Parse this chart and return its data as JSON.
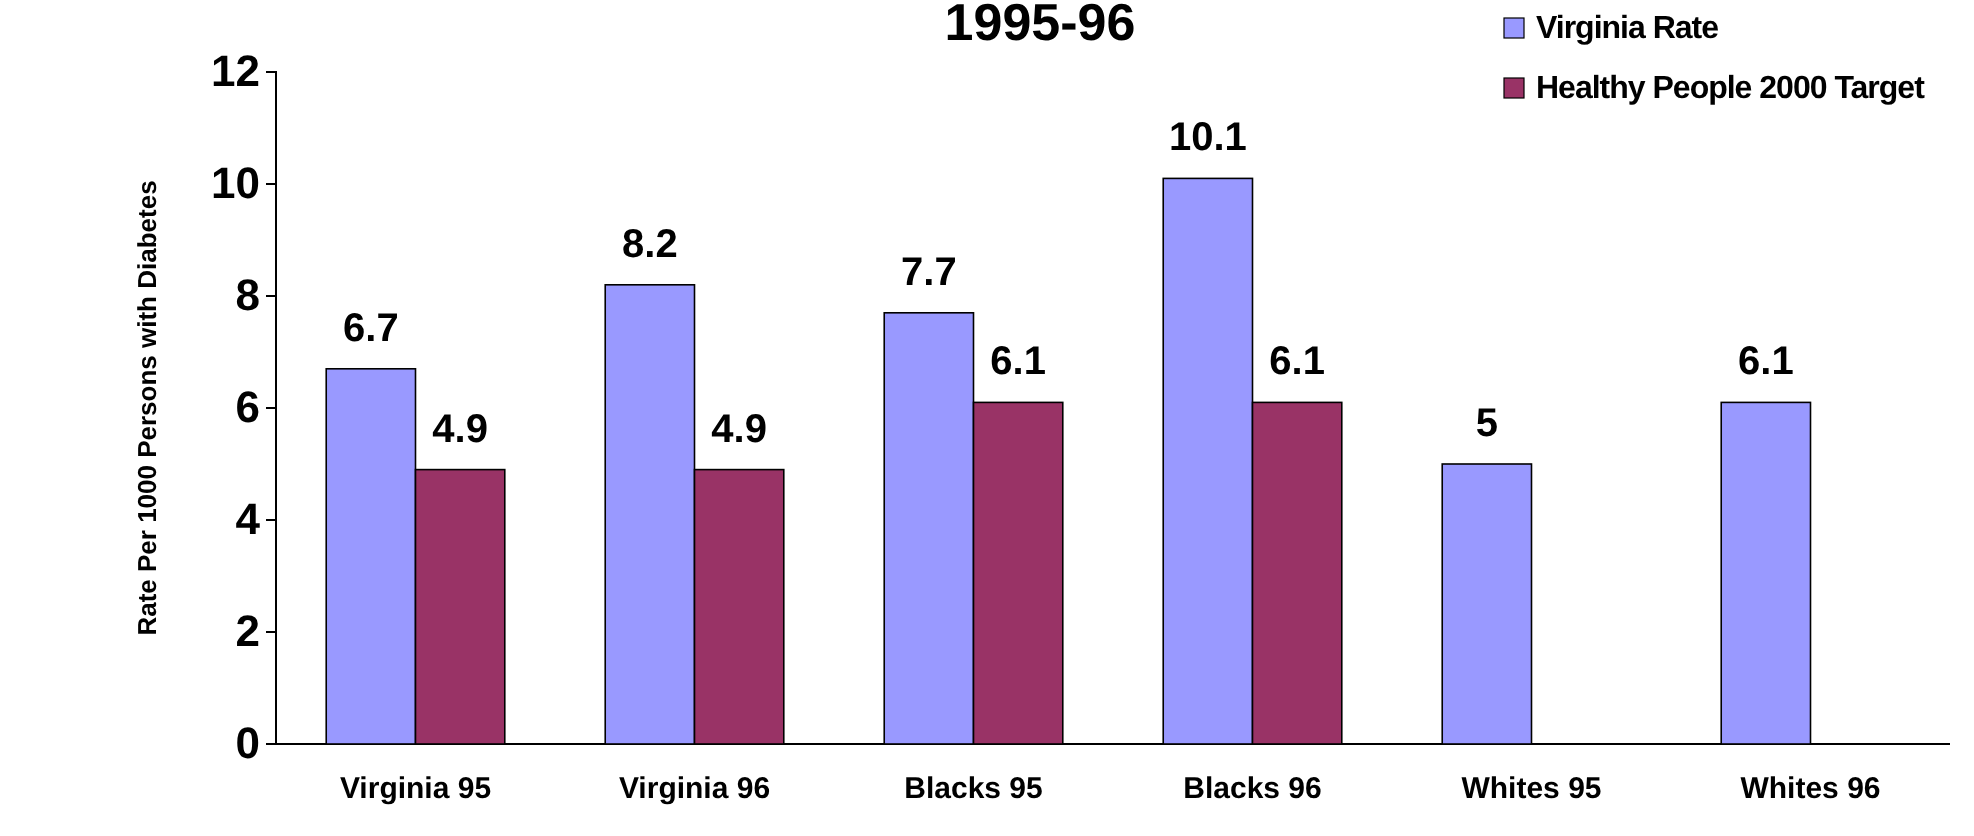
{
  "chart_data": {
    "type": "bar",
    "title": "1995-96",
    "ylabel": "Rate Per 1000 Persons with Diabetes",
    "categories": [
      "Virginia 95",
      "Virginia 96",
      "Blacks 95",
      "Blacks 96",
      "Whites 95",
      "Whites 96"
    ],
    "series": [
      {
        "name": "Virginia Rate",
        "color": "#9999ff",
        "values": [
          6.7,
          8.2,
          7.7,
          10.1,
          5,
          6.1
        ]
      },
      {
        "name": "Healthy People 2000 Target",
        "color": "#993366",
        "values": [
          4.9,
          4.9,
          6.1,
          6.1,
          null,
          null
        ]
      }
    ],
    "ylim": [
      0,
      12
    ],
    "yticks": [
      0,
      2,
      4,
      6,
      8,
      10,
      12
    ],
    "data_labels": true,
    "legend": "top right"
  }
}
